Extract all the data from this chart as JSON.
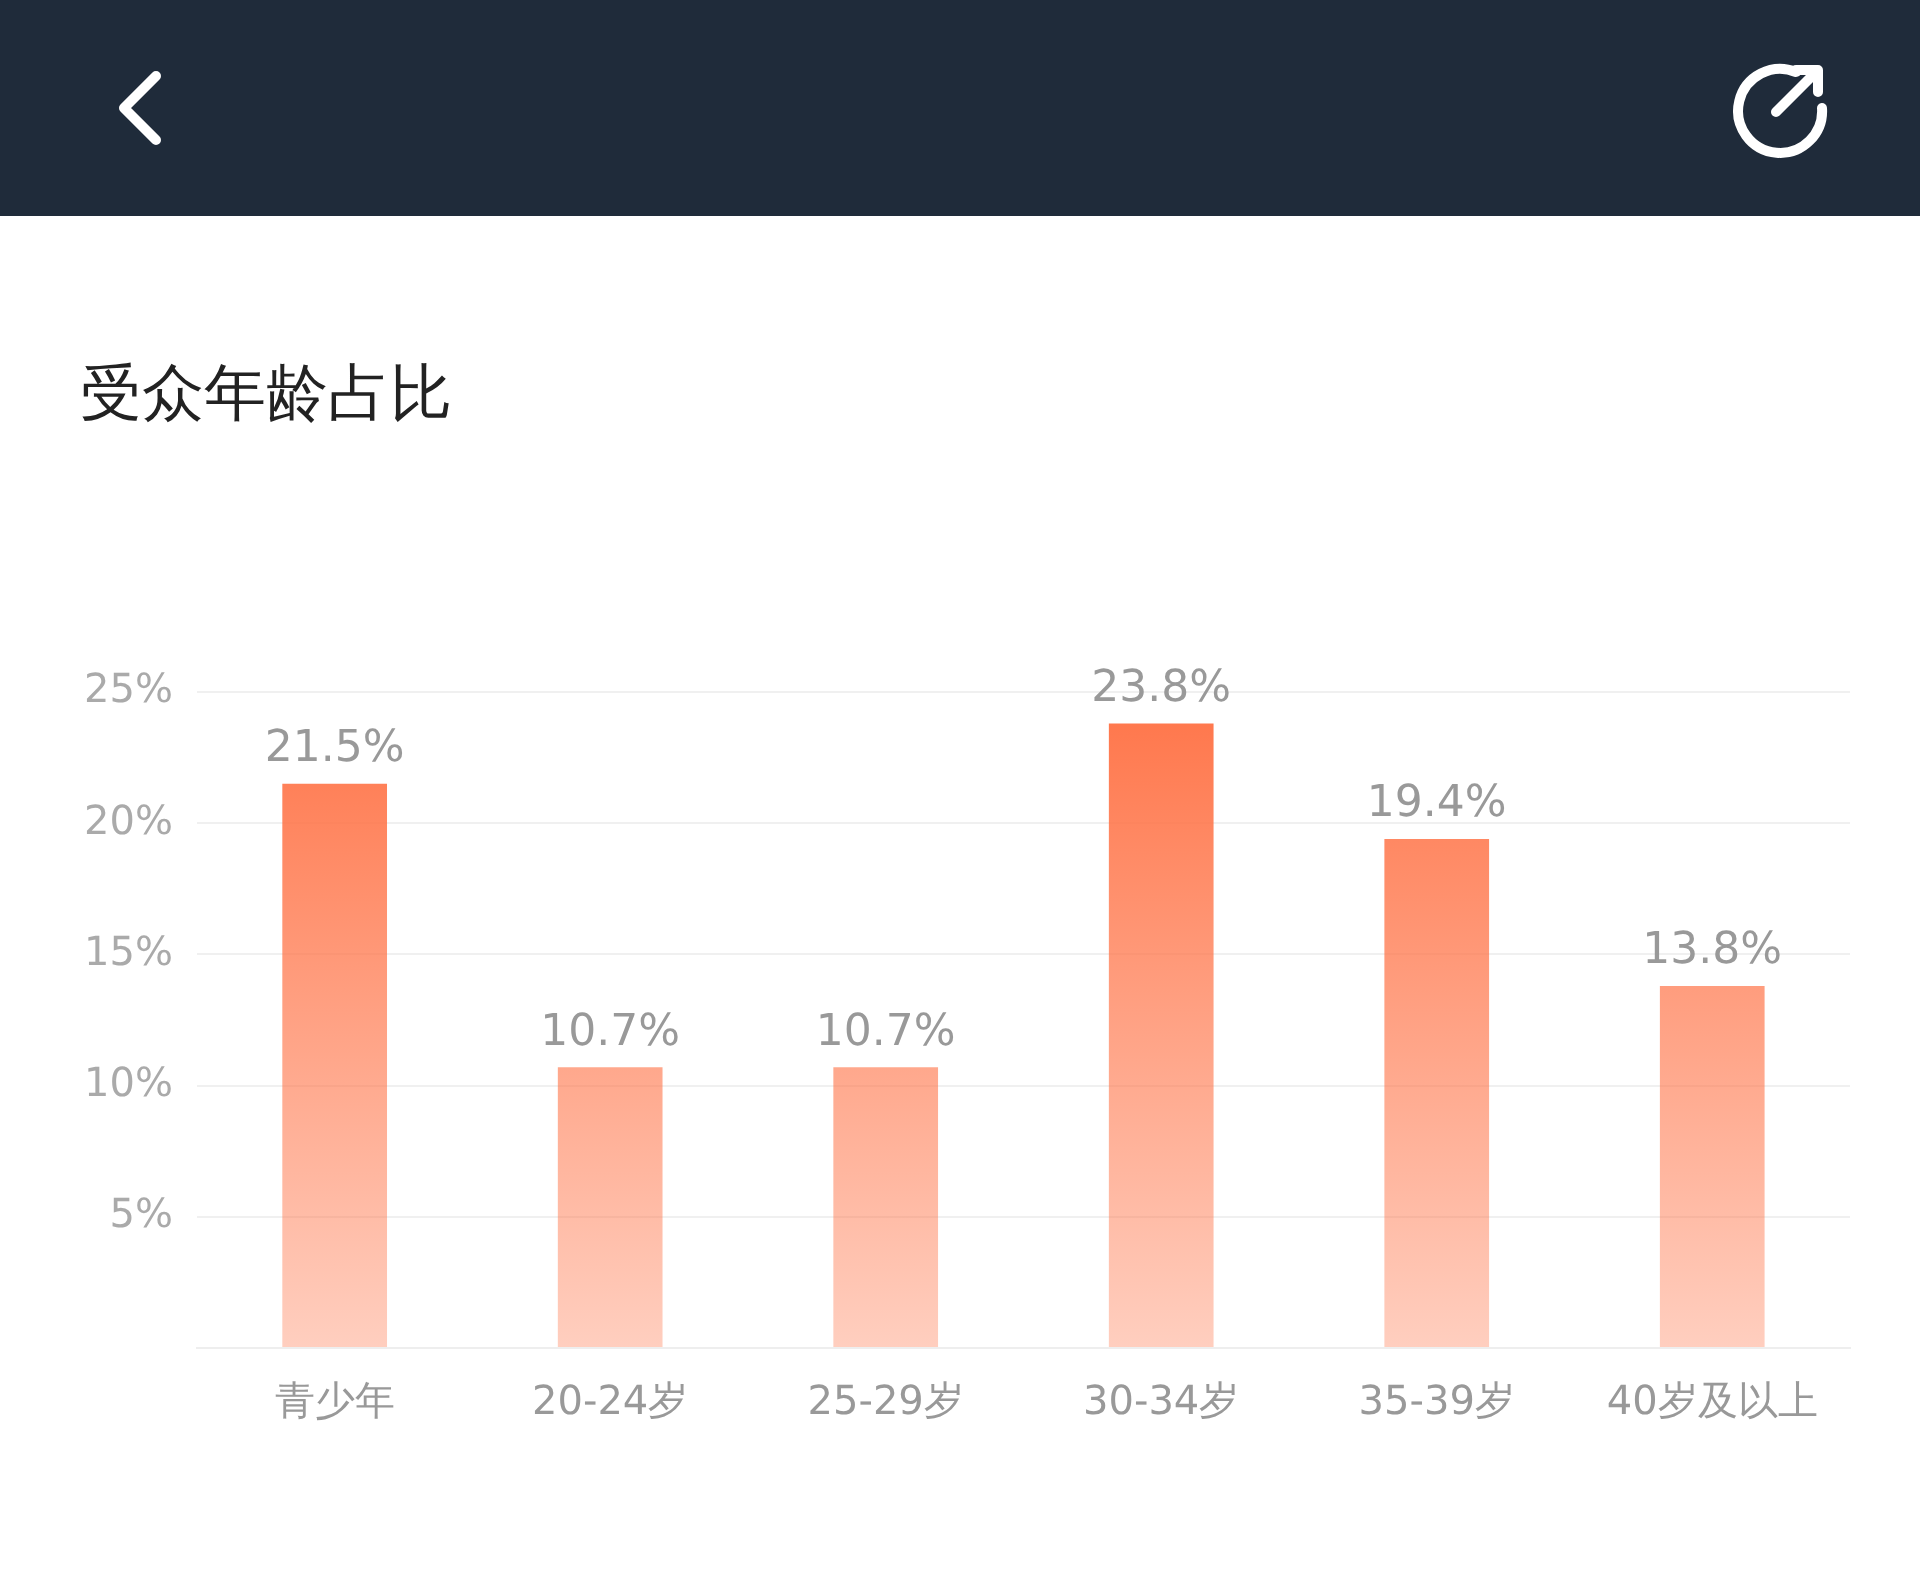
{
  "chart_data": {
    "type": "bar",
    "title": "受众年龄占比",
    "categories": [
      "青少年",
      "20-24岁",
      "25-29岁",
      "30-34岁",
      "35-39岁",
      "40岁及以上"
    ],
    "values": [
      21.5,
      10.7,
      10.7,
      23.8,
      19.4,
      13.8
    ],
    "value_labels": [
      "21.5%",
      "10.7%",
      "10.7%",
      "23.8%",
      "19.4%",
      "13.8%"
    ],
    "color": "#ff7448",
    "ylim": [
      0,
      25
    ],
    "yticks": [
      {
        "value": 0,
        "label": null
      },
      {
        "value": 5,
        "label": "5%"
      },
      {
        "value": 10,
        "label": "10%"
      },
      {
        "value": 15,
        "label": "15%"
      },
      {
        "value": 20,
        "label": "20%"
      },
      {
        "value": 25,
        "label": "25%"
      }
    ],
    "grid": "y",
    "legend": false
  }
}
